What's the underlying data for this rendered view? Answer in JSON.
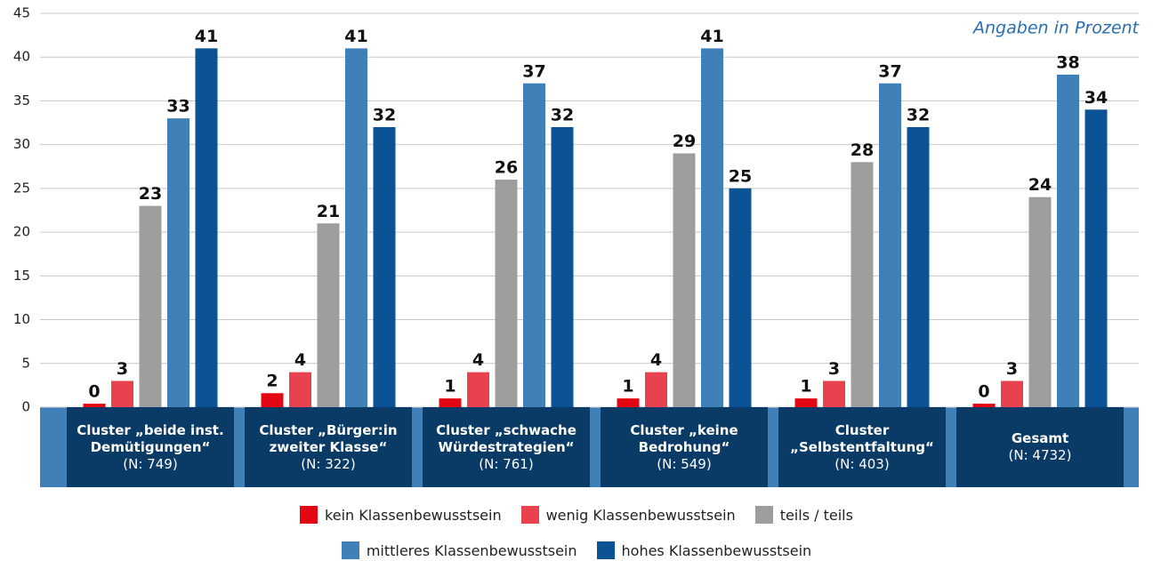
{
  "chart_data": {
    "type": "bar",
    "annotation": "Angaben in Prozent",
    "categories": [
      "Cluster „beide inst. Demütigungen“",
      "Cluster „Bürger:in zweiter Klasse“",
      "Cluster „schwache Würdestrategien“",
      "Cluster „keine Bedrohung“",
      "Cluster „Selbstentfaltung“",
      "Gesamt"
    ],
    "category_notes": [
      "(N: 749)",
      "(N: 322)",
      "(N: 761)",
      "(N: 549)",
      "(N: 403)",
      "(N: 4732)"
    ],
    "series": [
      {
        "name": "kein Klassenbewusstsein",
        "color": "#e30613",
        "values": [
          0.4,
          1.6,
          1,
          1,
          1,
          0.4
        ],
        "value_labels": [
          "0",
          "2",
          "1",
          "1",
          "1",
          "0"
        ]
      },
      {
        "name": "wenig Klassenbewusstsein",
        "color": "#e8424f",
        "values": [
          3,
          4,
          4,
          4,
          3,
          3
        ]
      },
      {
        "name": "teils / teils",
        "color": "#9d9d9c",
        "values": [
          23,
          21,
          26,
          29,
          28,
          24
        ]
      },
      {
        "name": "mittleres Klassenbewusstsein",
        "color": "#3f80b8",
        "values": [
          33,
          41,
          37,
          41,
          37,
          38
        ]
      },
      {
        "name": "hohes Klassenbewusstsein",
        "color": "#0b5394",
        "values": [
          41,
          32,
          32,
          25,
          32,
          34
        ]
      }
    ],
    "ylim": [
      0,
      45
    ],
    "yticks": [
      0,
      5,
      10,
      15,
      20,
      25,
      30,
      35,
      40,
      45
    ],
    "grid": true
  }
}
